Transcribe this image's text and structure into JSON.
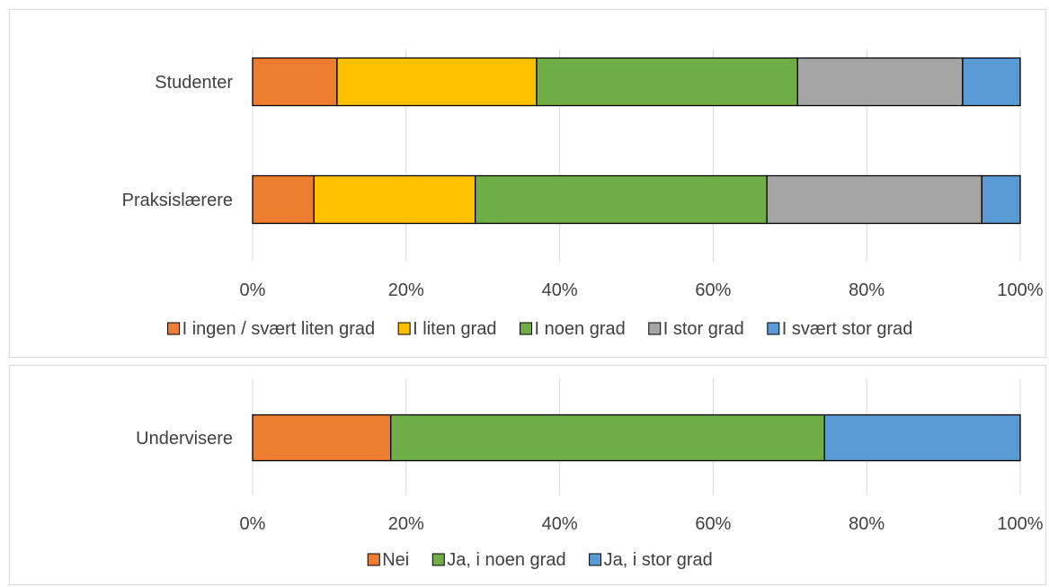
{
  "chart_data": [
    {
      "type": "bar",
      "orientation": "horizontal",
      "stacked": "percent",
      "categories": [
        "Studenter",
        "Praksislærere"
      ],
      "series": [
        {
          "name": "I ingen / svært liten grad",
          "color": "#ED7D31",
          "values": [
            11,
            8
          ]
        },
        {
          "name": "I liten grad",
          "color": "#FFC000",
          "values": [
            26,
            21
          ]
        },
        {
          "name": "I noen grad",
          "color": "#70AD47",
          "values": [
            34,
            38
          ]
        },
        {
          "name": "I stor grad",
          "color": "#A5A5A5",
          "values": [
            21.5,
            28
          ]
        },
        {
          "name": "I svært stor grad",
          "color": "#5B9BD5",
          "values": [
            7.5,
            5
          ]
        }
      ],
      "xticks": [
        "0%",
        "20%",
        "40%",
        "60%",
        "80%",
        "100%"
      ],
      "xlim": [
        0,
        100
      ],
      "grid": true,
      "legend": "bottom"
    },
    {
      "type": "bar",
      "orientation": "horizontal",
      "stacked": "percent",
      "categories": [
        "Undervisere"
      ],
      "series": [
        {
          "name": "Nei",
          "color": "#ED7D31",
          "values": [
            18
          ]
        },
        {
          "name": "Ja, i noen grad",
          "color": "#70AD47",
          "values": [
            56.5
          ]
        },
        {
          "name": "Ja, i stor grad",
          "color": "#5B9BD5",
          "values": [
            25.5
          ]
        }
      ],
      "xticks": [
        "0%",
        "20%",
        "40%",
        "60%",
        "80%",
        "100%"
      ],
      "xlim": [
        0,
        100
      ],
      "grid": true,
      "legend": "bottom"
    }
  ]
}
